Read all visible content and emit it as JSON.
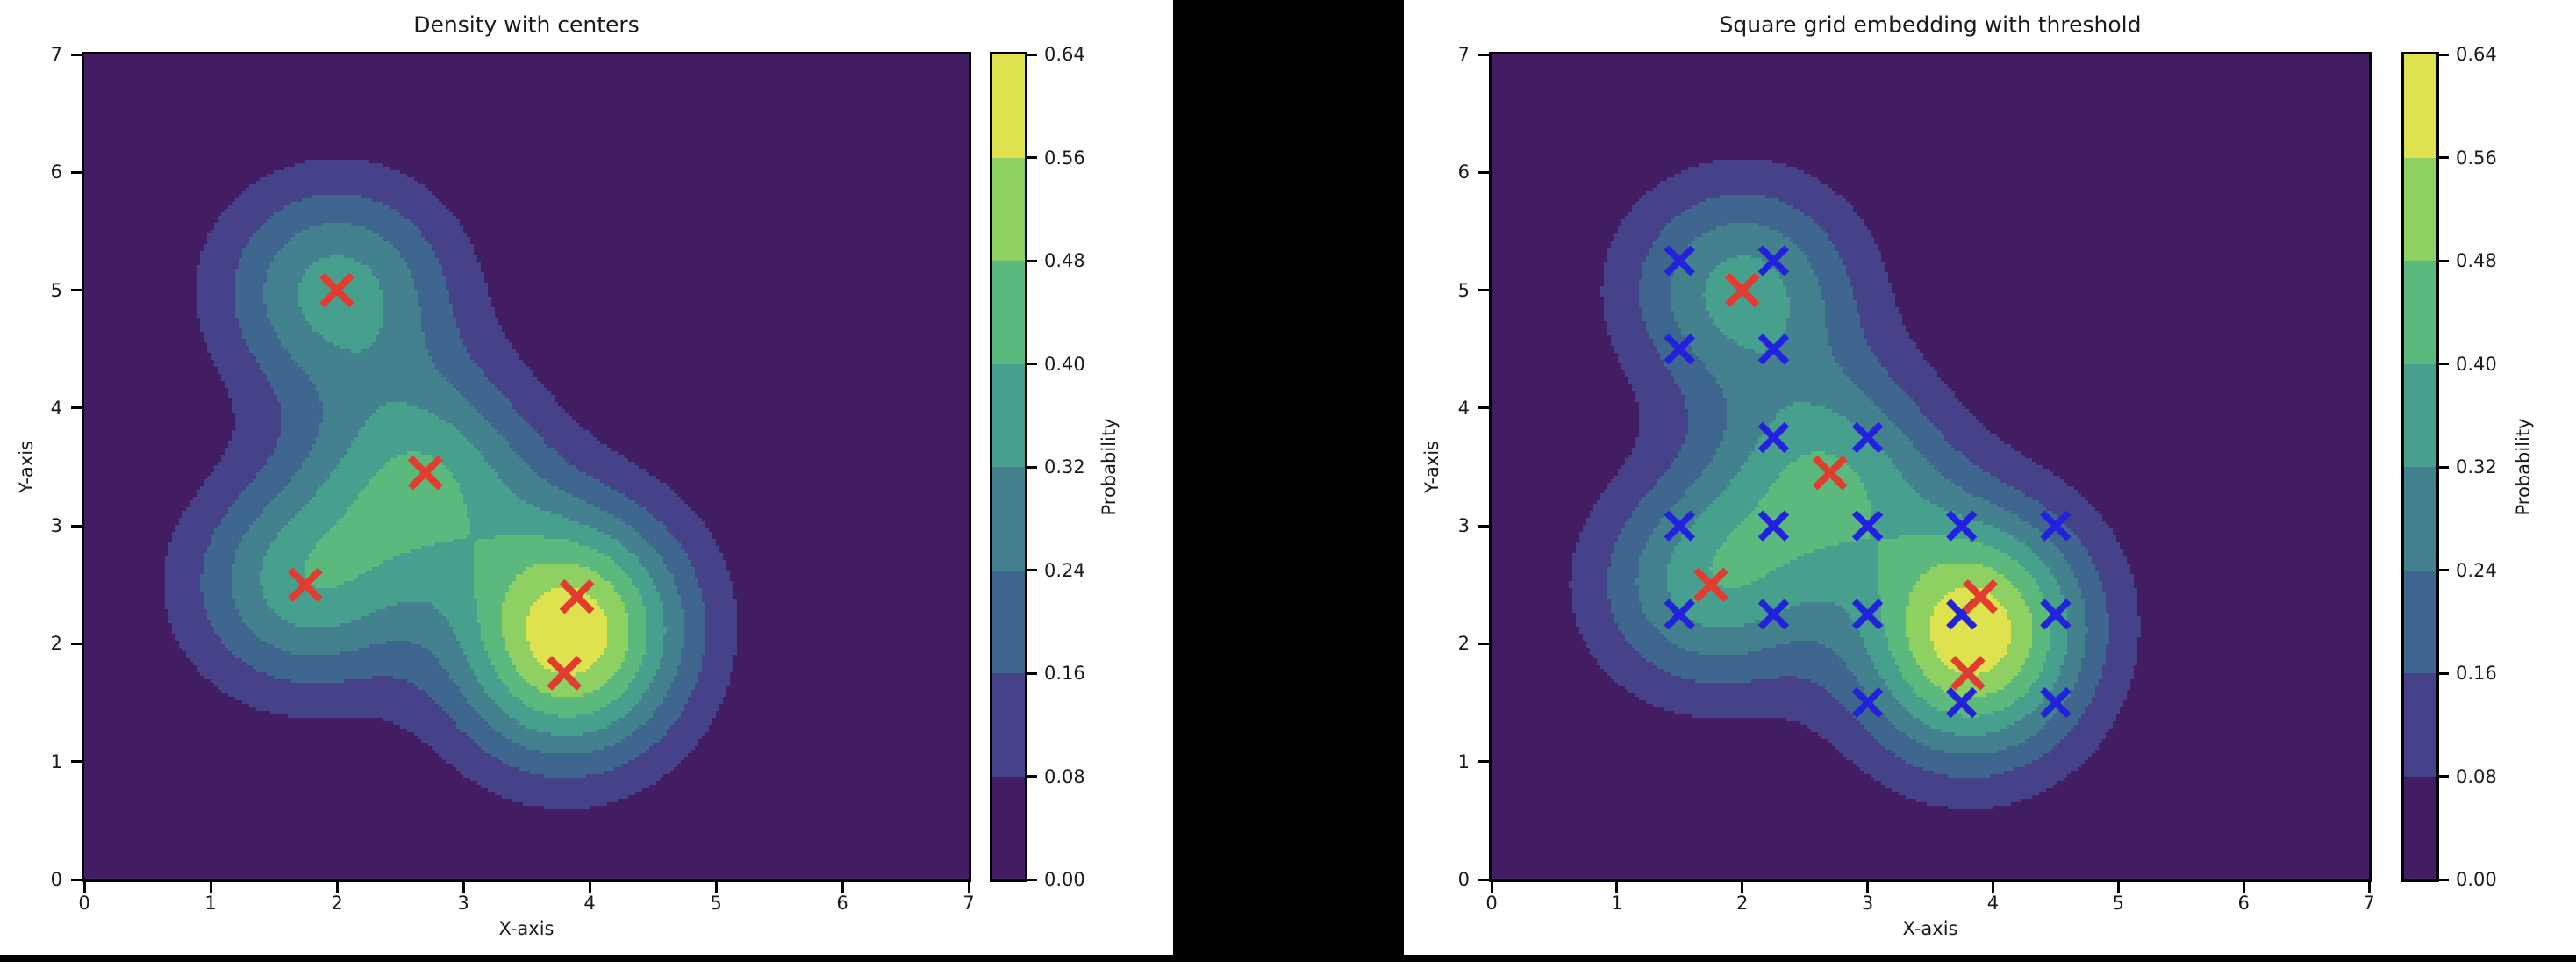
{
  "figure": {
    "canvas_background": "#000000",
    "panel_background": "#ffffff",
    "text_color": "#1a1a1a",
    "spine_color": "#000000"
  },
  "panels": [
    {
      "title": "Density with centers",
      "xlabel": "X-axis",
      "ylabel": "Y-axis",
      "x_tick_labels": [
        "0",
        "1",
        "2",
        "3",
        "4",
        "5",
        "6",
        "7"
      ],
      "y_tick_labels": [
        "0",
        "1",
        "2",
        "3",
        "4",
        "5",
        "6",
        "7"
      ]
    },
    {
      "title": "Square grid embedding with threshold",
      "xlabel": "X-axis",
      "ylabel": "Y-axis",
      "x_tick_labels": [
        "0",
        "1",
        "2",
        "3",
        "4",
        "5",
        "6",
        "7"
      ],
      "y_tick_labels": [
        "0",
        "1",
        "2",
        "3",
        "4",
        "5",
        "6",
        "7"
      ]
    }
  ],
  "colorbar": {
    "label": "Probability",
    "tick_labels": [
      "0.00",
      "0.08",
      "0.16",
      "0.24",
      "0.32",
      "0.40",
      "0.48",
      "0.56",
      "0.64"
    ],
    "tick_values": [
      0,
      0.08,
      0.16,
      0.24,
      0.32,
      0.4,
      0.48,
      0.56,
      0.64
    ],
    "band_colors": [
      "#431d63",
      "#46428a",
      "#3f668e",
      "#43818e",
      "#47a08d",
      "#5cb97d",
      "#8ed062",
      "#dde24e"
    ]
  },
  "density_model": {
    "type": "gaussian_mixture",
    "amplitude": 0.35,
    "sigma": 0.65,
    "levels": [
      0,
      0.08,
      0.16,
      0.24,
      0.32,
      0.4,
      0.48,
      0.56,
      0.64
    ],
    "threshold": 0.18
  },
  "chart_data": [
    {
      "type": "contour",
      "title": "Density with centers",
      "xlabel": "X-axis",
      "ylabel": "Y-axis",
      "xlim": [
        0,
        7
      ],
      "ylim": [
        0,
        7
      ],
      "colorbar_label": "Probability",
      "colorbar_range": [
        0,
        0.64
      ],
      "levels": [
        0,
        0.08,
        0.16,
        0.24,
        0.32,
        0.4,
        0.48,
        0.56,
        0.64
      ],
      "series": [
        {
          "name": "centers",
          "marker": "x",
          "color": "#e23c30",
          "points": [
            [
              2.0,
              5.0
            ],
            [
              2.7,
              3.45
            ],
            [
              1.75,
              2.5
            ],
            [
              3.9,
              2.4
            ],
            [
              3.8,
              1.75
            ]
          ]
        }
      ]
    },
    {
      "type": "contour",
      "title": "Square grid embedding with threshold",
      "xlabel": "X-axis",
      "ylabel": "Y-axis",
      "xlim": [
        0,
        7
      ],
      "ylim": [
        0,
        7
      ],
      "colorbar_label": "Probability",
      "colorbar_range": [
        0,
        0.64
      ],
      "levels": [
        0,
        0.08,
        0.16,
        0.24,
        0.32,
        0.4,
        0.48,
        0.56,
        0.64
      ],
      "series": [
        {
          "name": "grid-points-above-threshold",
          "marker": "x",
          "color": "#2121de",
          "points": [
            [
              1.5,
              5.25
            ],
            [
              2.25,
              5.25
            ],
            [
              1.5,
              4.5
            ],
            [
              2.25,
              4.5
            ],
            [
              2.25,
              3.75
            ],
            [
              3.0,
              3.75
            ],
            [
              1.5,
              3.0
            ],
            [
              2.25,
              3.0
            ],
            [
              3.0,
              3.0
            ],
            [
              3.75,
              3.0
            ],
            [
              4.5,
              3.0
            ],
            [
              1.5,
              2.25
            ],
            [
              2.25,
              2.25
            ],
            [
              3.0,
              2.25
            ],
            [
              3.75,
              2.25
            ],
            [
              4.5,
              2.25
            ],
            [
              3.0,
              1.5
            ],
            [
              3.75,
              1.5
            ],
            [
              4.5,
              1.5
            ]
          ]
        },
        {
          "name": "centers",
          "marker": "x",
          "color": "#e23c30",
          "points": [
            [
              2.0,
              5.0
            ],
            [
              2.7,
              3.45
            ],
            [
              1.75,
              2.5
            ],
            [
              3.9,
              2.4
            ],
            [
              3.8,
              1.75
            ]
          ]
        }
      ]
    }
  ]
}
